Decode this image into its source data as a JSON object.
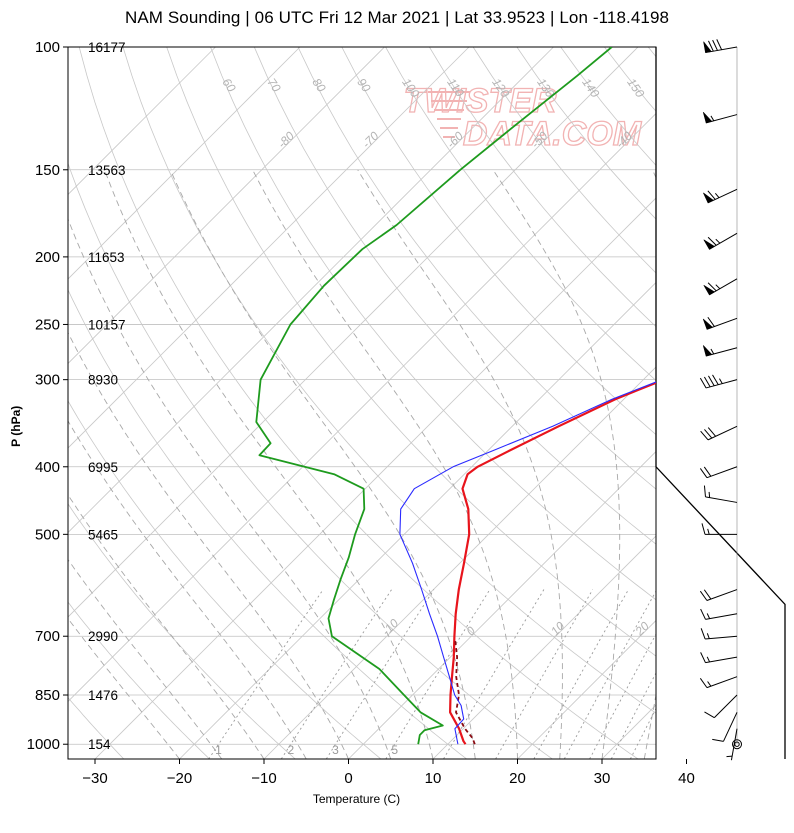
{
  "title": "NAM Sounding | 06 UTC Fri 12 Mar 2021 | Lat 33.9523 | Lon -118.4198",
  "watermark": [
    "TWISTER",
    "DATA.COM"
  ],
  "chart_data": {
    "type": "line",
    "diagram": "skew-T log-P",
    "xlabel": "Temperature (C)",
    "ylabel": "P (hPa)",
    "x_ticks": [
      -30,
      -20,
      -10,
      0,
      10,
      20,
      30,
      40
    ],
    "y_scale": "log",
    "ylim": [
      1050,
      100
    ],
    "pressure_levels": [
      {
        "p": 100,
        "hgt": "16177"
      },
      {
        "p": 150,
        "hgt": "13563"
      },
      {
        "p": 200,
        "hgt": "11653"
      },
      {
        "p": 250,
        "hgt": "10157"
      },
      {
        "p": 300,
        "hgt": "8930"
      },
      {
        "p": 400,
        "hgt": "6995"
      },
      {
        "p": 500,
        "hgt": "5465"
      },
      {
        "p": 700,
        "hgt": "2990"
      },
      {
        "p": 850,
        "hgt": "1476"
      },
      {
        "p": 1000,
        "hgt": "154"
      }
    ],
    "isotherm_labels": [
      -80,
      -70,
      -60,
      -50,
      -40,
      -30,
      -20,
      -10,
      0,
      10,
      20,
      30,
      40,
      50,
      60,
      70,
      80
    ],
    "dry_adiabat_labels": [
      60,
      70,
      80,
      90,
      100,
      110,
      120,
      130,
      140,
      150,
      160
    ],
    "mixing_ratio_labels": [
      "1",
      "2",
      "3",
      "5",
      "8",
      "12",
      "16",
      "20",
      "24",
      "28",
      "32"
    ],
    "series": [
      {
        "name": "Temperature",
        "color": "#e8141c",
        "points": [
          [
            12.1,
            1000
          ],
          [
            11.5,
            990
          ],
          [
            9.5,
            950
          ],
          [
            6.5,
            900
          ],
          [
            4.5,
            850
          ],
          [
            2.5,
            800
          ],
          [
            0.4,
            750
          ],
          [
            -2,
            700
          ],
          [
            -4.5,
            650
          ],
          [
            -7,
            600
          ],
          [
            -9.5,
            550
          ],
          [
            -12.3,
            500
          ],
          [
            -15.4,
            460
          ],
          [
            -18.5,
            430
          ],
          [
            -19.6,
            410
          ],
          [
            -19.3,
            400
          ],
          [
            -17.5,
            380
          ],
          [
            -14.5,
            350
          ],
          [
            -11,
            320
          ],
          [
            -7.6,
            300
          ],
          [
            -4.5,
            280
          ],
          [
            -1.8,
            260
          ],
          [
            0.6,
            245
          ],
          [
            3.4,
            230
          ],
          [
            6.2,
            215
          ],
          [
            8.3,
            200
          ],
          [
            10.5,
            185
          ],
          [
            12.5,
            170
          ],
          [
            14.2,
            150
          ],
          [
            15.5,
            135
          ],
          [
            16.8,
            120
          ],
          [
            18.3,
            110
          ],
          [
            19.7,
            100
          ]
        ]
      },
      {
        "name": "Dewpoint",
        "color": "#1e9b1e",
        "points": [
          [
            6.5,
            1000
          ],
          [
            5.6,
            970
          ],
          [
            5.6,
            955
          ],
          [
            7.2,
            940
          ],
          [
            3,
            900
          ],
          [
            -1,
            850
          ],
          [
            -7,
            780
          ],
          [
            -16.5,
            700
          ],
          [
            -19,
            660
          ],
          [
            -20.6,
            620
          ],
          [
            -22.2,
            580
          ],
          [
            -23.8,
            540
          ],
          [
            -25.8,
            500
          ],
          [
            -27.7,
            460
          ],
          [
            -30.2,
            430
          ],
          [
            -35.4,
            410
          ],
          [
            -46.5,
            385
          ],
          [
            -46.6,
            370
          ],
          [
            -50.8,
            345
          ],
          [
            -55.3,
            300
          ],
          [
            -58.3,
            250
          ],
          [
            -58.9,
            220
          ],
          [
            -58.7,
            195
          ],
          [
            -57.5,
            180
          ],
          [
            -56.5,
            150
          ],
          [
            -55.3,
            130
          ],
          [
            -53.8,
            110
          ],
          [
            -53.1,
            100
          ]
        ]
      },
      {
        "name": "Virtual Temperature",
        "color": "#8a0a12",
        "dashed": true,
        "points": [
          [
            13.2,
            1000
          ],
          [
            12.2,
            980
          ],
          [
            10.2,
            950
          ],
          [
            7.2,
            900
          ],
          [
            5.5,
            850
          ],
          [
            3,
            800
          ],
          [
            0.8,
            750
          ],
          [
            -1.4,
            710
          ]
        ]
      },
      {
        "name": "Parcel",
        "color": "#2a2aff",
        "points": [
          [
            11.2,
            1000
          ],
          [
            9,
            950
          ],
          [
            8.9,
            920
          ],
          [
            7,
            880
          ],
          [
            5,
            850
          ],
          [
            2.2,
            800
          ],
          [
            -0.8,
            750
          ],
          [
            -4,
            700
          ],
          [
            -7.6,
            650
          ],
          [
            -11.4,
            600
          ],
          [
            -15.6,
            550
          ],
          [
            -20.5,
            500
          ],
          [
            -23.4,
            460
          ],
          [
            -24.2,
            430
          ],
          [
            -22.2,
            400
          ],
          [
            -19.5,
            380
          ],
          [
            -15.2,
            350
          ],
          [
            -11.4,
            320
          ],
          [
            -7.8,
            300
          ],
          [
            -2,
            270
          ],
          [
            2,
            245
          ],
          [
            6,
            220
          ],
          [
            8.7,
            200
          ],
          [
            10.6,
            180
          ],
          [
            12.3,
            160
          ],
          [
            13.9,
            145
          ],
          [
            15.3,
            130
          ],
          [
            16.9,
            115
          ],
          [
            18,
            100
          ]
        ]
      }
    ],
    "wind_barbs": [
      {
        "p": 100,
        "dir": 260,
        "kt": 80
      },
      {
        "p": 125,
        "dir": 255,
        "kt": 55
      },
      {
        "p": 160,
        "dir": 245,
        "kt": 65
      },
      {
        "p": 185,
        "dir": 240,
        "kt": 65
      },
      {
        "p": 215,
        "dir": 240,
        "kt": 65
      },
      {
        "p": 245,
        "dir": 250,
        "kt": 60
      },
      {
        "p": 270,
        "dir": 255,
        "kt": 55
      },
      {
        "p": 300,
        "dir": 255,
        "kt": 45
      },
      {
        "p": 350,
        "dir": 245,
        "kt": 30
      },
      {
        "p": 400,
        "dir": 250,
        "kt": 20
      },
      {
        "p": 450,
        "dir": 280,
        "kt": 15
      },
      {
        "p": 500,
        "dir": 270,
        "kt": 15
      },
      {
        "p": 600,
        "dir": 250,
        "kt": 20
      },
      {
        "p": 650,
        "dir": 260,
        "kt": 15
      },
      {
        "p": 700,
        "dir": 265,
        "kt": 15
      },
      {
        "p": 750,
        "dir": 260,
        "kt": 15
      },
      {
        "p": 800,
        "dir": 250,
        "kt": 15
      },
      {
        "p": 850,
        "dir": 225,
        "kt": 10
      },
      {
        "p": 900,
        "dir": 205,
        "kt": 10
      },
      {
        "p": 950,
        "dir": 190,
        "kt": 5
      },
      {
        "p": 1000,
        "dir": 0,
        "kt": 0
      }
    ]
  }
}
